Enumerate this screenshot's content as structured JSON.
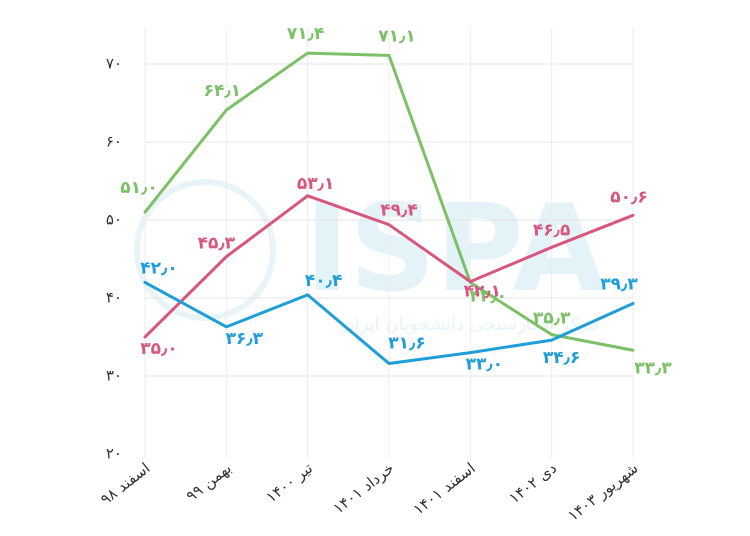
{
  "chart_data": {
    "type": "line",
    "categories": [
      "اسفند ۹۸",
      "بهمن ۹۹",
      "تیر ۱۴۰۰",
      "خرداد ۱۴۰۱",
      "اسفند ۱۴۰۱",
      "دی ۱۴۰۲",
      "شهریور ۱۴۰۳"
    ],
    "ylim": [
      20,
      72
    ],
    "yticks": [
      20,
      30,
      40,
      50,
      60,
      70
    ],
    "ytick_labels": [
      "۲۰",
      "۳۰",
      "۴۰",
      "۵۰",
      "۶۰",
      "۷۰"
    ],
    "grid": true,
    "series": [
      {
        "color": "#7cc067",
        "values": [
          51.0,
          64.1,
          71.4,
          71.1,
          42.0,
          35.3,
          33.3
        ],
        "labels": [
          "۵۱٫۰",
          "۶۴٫۱",
          "۷۱٫۴",
          "۷۱٫۱",
          "۴۲٫۰",
          "۳۵٫۳",
          "۳۳٫۳"
        ]
      },
      {
        "color": "#d9577e",
        "values": [
          35.0,
          45.3,
          53.1,
          49.4,
          42.1,
          46.5,
          50.6
        ],
        "labels": [
          "۳۵٫۰",
          "۴۵٫۳",
          "۵۳٫۱",
          "۴۹٫۴",
          "۴۲٫۱",
          "۴۶٫۵",
          "۵۰٫۶"
        ]
      },
      {
        "color": "#1f9ed8",
        "values": [
          42.0,
          36.3,
          40.4,
          31.6,
          33.0,
          34.6,
          39.3
        ],
        "labels": [
          "۴۲٫۰",
          "۳۶٫۳",
          "۴۰٫۴",
          "۳۱٫۶",
          "۳۳٫۰",
          "۳۴٫۶",
          "۳۹٫۳"
        ]
      }
    ]
  },
  "watermark": {
    "text": "ISPA",
    "subtitle": "مرکز افکارسنجی دانشجویان ایران",
    "color": "#e4f3f8"
  }
}
